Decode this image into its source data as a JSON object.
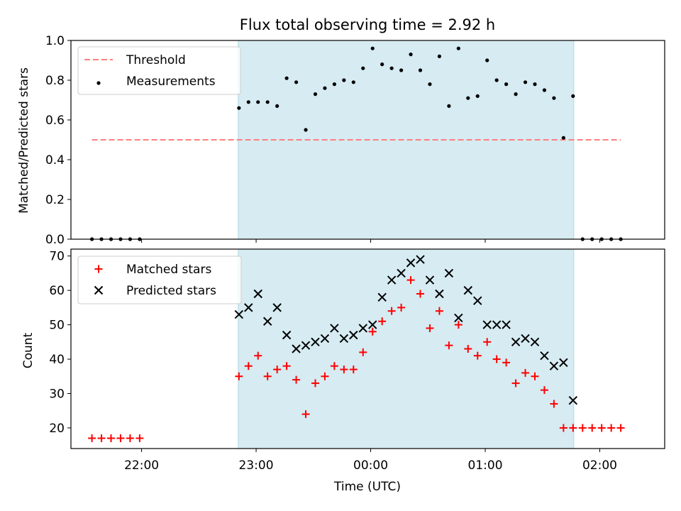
{
  "chart_data": [
    {
      "type": "scatter",
      "title": "Flux total observing time = 2.92 h",
      "xlabel": "",
      "ylabel": "Matched/Predicted stars",
      "ylim": [
        0.0,
        1.0
      ],
      "yticks": [
        "0.0",
        "0.2",
        "0.4",
        "0.6",
        "0.8",
        "1.0"
      ],
      "observing_window": [
        "23:00 - 0.13 h",
        "01:48"
      ],
      "legend_position": "top-left",
      "threshold": {
        "name": "Threshold",
        "value": 0.5,
        "color": "#ff7f7f"
      },
      "series": [
        {
          "name": "Measurements",
          "color": "#000000",
          "x": [
            "21:34",
            "21:39",
            "21:44",
            "21:49",
            "21:54",
            "21:59",
            "22:51",
            "22:56",
            "23:01",
            "23:06",
            "23:11",
            "23:16",
            "23:21",
            "23:26",
            "23:31",
            "23:36",
            "23:41",
            "23:46",
            "23:51",
            "23:56",
            "00:01",
            "00:06",
            "00:11",
            "00:16",
            "00:21",
            "00:26",
            "00:31",
            "00:36",
            "00:41",
            "00:46",
            "00:51",
            "00:56",
            "01:01",
            "01:06",
            "01:11",
            "01:16",
            "01:21",
            "01:26",
            "01:31",
            "01:36",
            "01:41",
            "01:46",
            "01:51",
            "01:56",
            "02:01",
            "02:06",
            "02:11"
          ],
          "values": [
            0,
            0,
            0,
            0,
            0,
            0,
            0.66,
            0.69,
            0.69,
            0.69,
            0.67,
            0.81,
            0.79,
            0.55,
            0.73,
            0.76,
            0.78,
            0.8,
            0.79,
            0.86,
            0.96,
            0.88,
            0.86,
            0.85,
            0.93,
            0.85,
            0.78,
            0.92,
            0.67,
            0.96,
            0.71,
            0.72,
            0.9,
            0.8,
            0.78,
            0.73,
            0.79,
            0.78,
            0.75,
            0.71,
            0.51,
            0.72,
            0,
            0,
            0,
            0,
            0
          ]
        }
      ]
    },
    {
      "type": "scatter",
      "title": "",
      "xlabel": "Time (UTC)",
      "ylabel": "Count",
      "ylim": [
        14,
        72
      ],
      "yticks": [
        "20",
        "30",
        "40",
        "50",
        "60",
        "70"
      ],
      "xticks": [
        "22:00",
        "23:00",
        "00:00",
        "01:00",
        "02:00"
      ],
      "legend_position": "top-left",
      "series": [
        {
          "name": "Matched stars",
          "marker": "+",
          "color": "#ff0000",
          "x": [
            "21:34",
            "21:39",
            "21:44",
            "21:49",
            "21:54",
            "21:59",
            "22:51",
            "22:56",
            "23:01",
            "23:06",
            "23:11",
            "23:16",
            "23:21",
            "23:26",
            "23:31",
            "23:36",
            "23:41",
            "23:46",
            "23:51",
            "23:56",
            "00:01",
            "00:06",
            "00:11",
            "00:16",
            "00:21",
            "00:26",
            "00:31",
            "00:36",
            "00:41",
            "00:46",
            "00:51",
            "00:56",
            "01:01",
            "01:06",
            "01:11",
            "01:16",
            "01:21",
            "01:26",
            "01:31",
            "01:36",
            "01:41",
            "01:46",
            "01:51",
            "01:56",
            "02:01",
            "02:06",
            "02:11"
          ],
          "values": [
            17,
            17,
            17,
            17,
            17,
            17,
            35,
            38,
            41,
            35,
            37,
            38,
            34,
            24,
            33,
            35,
            38,
            37,
            37,
            42,
            48,
            51,
            54,
            55,
            63,
            59,
            49,
            54,
            44,
            50,
            43,
            41,
            45,
            40,
            39,
            33,
            36,
            35,
            31,
            27,
            20,
            20,
            20,
            20,
            20,
            20,
            20
          ]
        },
        {
          "name": "Predicted stars",
          "marker": "x",
          "color": "#000000",
          "x": [
            "22:51",
            "22:56",
            "23:01",
            "23:06",
            "23:11",
            "23:16",
            "23:21",
            "23:26",
            "23:31",
            "23:36",
            "23:41",
            "23:46",
            "23:51",
            "23:56",
            "00:01",
            "00:06",
            "00:11",
            "00:16",
            "00:21",
            "00:26",
            "00:31",
            "00:36",
            "00:41",
            "00:46",
            "00:51",
            "00:56",
            "01:01",
            "01:06",
            "01:11",
            "01:16",
            "01:21",
            "01:26",
            "01:31",
            "01:36",
            "01:41",
            "01:46"
          ],
          "values": [
            53,
            55,
            59,
            51,
            55,
            47,
            43,
            44,
            45,
            46,
            49,
            46,
            47,
            49,
            50,
            58,
            63,
            65,
            68,
            69,
            63,
            59,
            65,
            52,
            60,
            57,
            50,
            50,
            50,
            45,
            46,
            45,
            41,
            38,
            39,
            28
          ]
        }
      ]
    }
  ]
}
